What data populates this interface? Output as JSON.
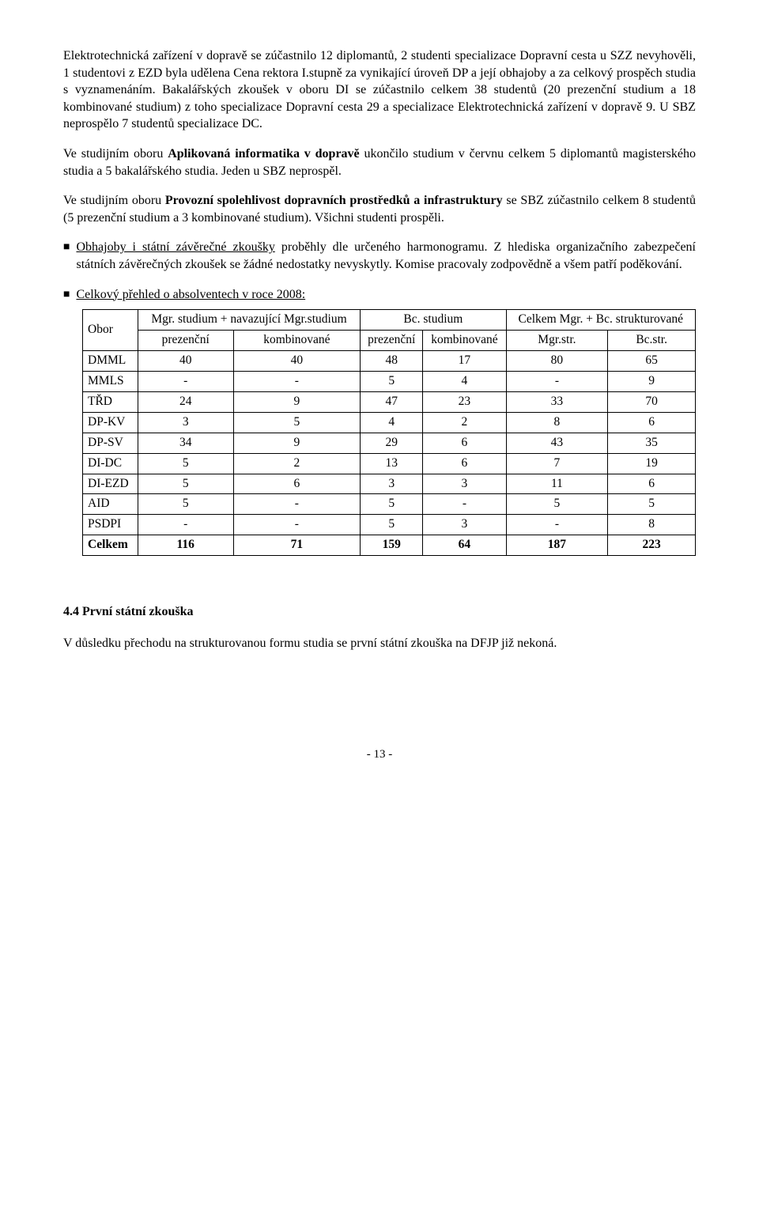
{
  "para1": "Elektrotechnická zařízení v dopravě se zúčastnilo 12 diplomantů, 2 studenti specializace Dopravní cesta u SZZ nevyhověli, 1 studentovi z EZD byla udělena Cena rektora I.stupně za vynikající úroveň DP a její obhajoby a za celkový prospěch studia s vyznamenáním. Bakalářských zkoušek v oboru DI se zúčastnilo celkem 38 studentů (20 prezenční studium a 18 kombinované studium) z toho specializace Dopravní cesta 29 a specializace Elektrotechnická zařízení v dopravě 9. U SBZ neprospělo 7 studentů specializace DC.",
  "para2_pre": "Ve studijním oboru ",
  "para2_bold": "Aplikovaná informatika v dopravě",
  "para2_post": " ukončilo studium v červnu celkem 5 diplomantů magisterského studia a 5 bakalářského studia. Jeden u SBZ neprospěl.",
  "para3_pre": "Ve studijním oboru ",
  "para3_bold": "Provozní spolehlivost dopravních prostředků a infrastruktury",
  "para3_post": " se SBZ zúčastnilo celkem 8 studentů (5 prezenční studium a 3 kombinované studium). Všichni studenti prospěli.",
  "bullet1_u": "Obhajoby i státní závěrečné zkoušky",
  "bullet1_rest": " proběhly dle určeného harmonogramu. Z hlediska organizačního zabezpečení státních závěrečných zkoušek se žádné nedostatky nevyskytly. Komise pracovaly zodpovědně a všem patří poděkování.",
  "bullet2_u": "Celkový přehled o absolventech v roce 2008:",
  "table": {
    "head": {
      "obor": "Obor",
      "mgr": "Mgr. studium + navazující Mgr.studium",
      "bc": "Bc. studium",
      "celkem": "Celkem Mgr. + Bc. strukturované",
      "prez": "prezenční",
      "komb": "kombinované",
      "mgrstr": "Mgr.str.",
      "bcstr": "Bc.str."
    },
    "rows": [
      {
        "o": "DMML",
        "a": "40",
        "b": "40",
        "c": "48",
        "d": "17",
        "e": "80",
        "f": "65"
      },
      {
        "o": "MMLS",
        "a": "-",
        "b": "-",
        "c": "5",
        "d": "4",
        "e": "-",
        "f": "9"
      },
      {
        "o": "TŘD",
        "a": "24",
        "b": "9",
        "c": "47",
        "d": "23",
        "e": "33",
        "f": "70"
      },
      {
        "o": "DP-KV",
        "a": "3",
        "b": "5",
        "c": "4",
        "d": "2",
        "e": "8",
        "f": "6"
      },
      {
        "o": "DP-SV",
        "a": "34",
        "b": "9",
        "c": "29",
        "d": "6",
        "e": "43",
        "f": "35"
      },
      {
        "o": "DI-DC",
        "a": "5",
        "b": "2",
        "c": "13",
        "d": "6",
        "e": "7",
        "f": "19"
      },
      {
        "o": "DI-EZD",
        "a": "5",
        "b": "6",
        "c": "3",
        "d": "3",
        "e": "11",
        "f": "6"
      },
      {
        "o": "AID",
        "a": "5",
        "b": "-",
        "c": "5",
        "d": "-",
        "e": "5",
        "f": "5"
      },
      {
        "o": "PSDPI",
        "a": "-",
        "b": "-",
        "c": "5",
        "d": "3",
        "e": "-",
        "f": "8"
      }
    ],
    "total": {
      "o": "Celkem",
      "a": "116",
      "b": "71",
      "c": "159",
      "d": "64",
      "e": "187",
      "f": "223"
    }
  },
  "section_head": "4.4 První státní zkouška",
  "para4": "V důsledku přechodu na strukturovanou formu studia se první státní zkouška na DFJP již nekoná.",
  "pagenum": "- 13 -"
}
